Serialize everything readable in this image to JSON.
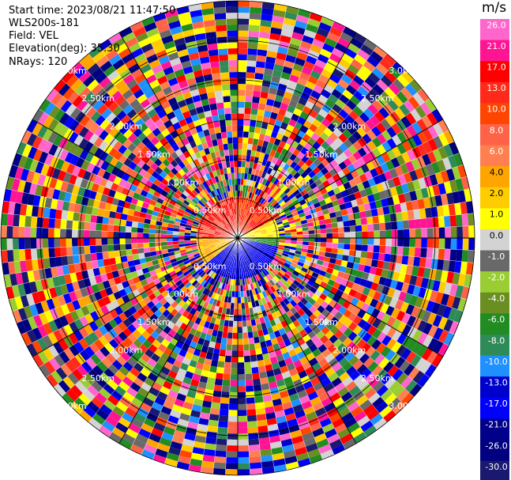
{
  "header": {
    "start_time": "Start time: 2023/08/21 11:47:50",
    "instrument": "WLS200s-181",
    "field": "Field: VEL",
    "elevation": "Elevation(deg): 35.30",
    "nrays": "NRays: 120"
  },
  "legend": {
    "unit": "m/s",
    "ticks": [
      "26.0",
      "21.0",
      "17.0",
      "13.0",
      "10.0",
      "8.0",
      "6.0",
      "4.0",
      "2.0",
      "1.0",
      "0.0",
      "-1.0",
      "-2.0",
      "-4.0",
      "-6.0",
      "-8.0",
      "-10.0",
      "-13.0",
      "-17.0",
      "-21.0",
      "-26.0",
      "-30.0"
    ],
    "colors": [
      "#ff66cc",
      "#ff1493",
      "#ff0000",
      "#ff2a1a",
      "#ff4500",
      "#ff6347",
      "#ff7f50",
      "#ffa500",
      "#ffcc00",
      "#ffff00",
      "#d3d3d3",
      "#696969",
      "#9acd32",
      "#6b8e23",
      "#228b22",
      "#2e8b57",
      "#1e90ff",
      "#0000cd",
      "#0000ff",
      "#00008b",
      "#000080",
      "#191970"
    ]
  },
  "chart_data": {
    "type": "heatmap",
    "projection": "polar-ppi",
    "field": "VEL",
    "nrays": 120,
    "range_ring_labels": [
      "0.50km",
      "1.00km",
      "1.50km",
      "2.00km",
      "2.50km",
      "3.00km"
    ],
    "colorbar_min": -30.0,
    "colorbar_max": 26.0,
    "unit": "m/s"
  }
}
